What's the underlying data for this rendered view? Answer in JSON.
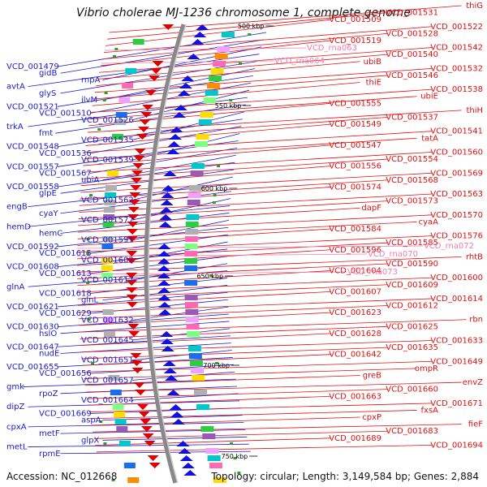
{
  "title": "Vibrio cholerae MJ-1236 chromosome 1, complete genome",
  "footer": {
    "accession": "Accession: NC_012668",
    "stats": "Topology: circular; Length: 3,149,584 bp; Genes: 2,884"
  },
  "colors": {
    "forward_label": "#1a1acc",
    "reverse_label": "#e01010",
    "rna_label": "#f07fb0",
    "forward_feature": "#1010e0",
    "reverse_feature": "#e00000",
    "backbone": "#888888"
  },
  "ticks": [
    "500 kbp",
    "550 kbp",
    "600 kbp",
    "650 kbp",
    "700 kbp",
    "750 kbp"
  ],
  "left_labels": [
    "VCD_001479",
    "gidB",
    "rnpA",
    "avtA",
    "glyS",
    "ilvM",
    "VCD_001521",
    "VCD_001510",
    "VCD_001526",
    "trkA",
    "fmt",
    "VCD_001535",
    "VCD_001548",
    "VCD_001536",
    "VCD_001539",
    "VCD_001557",
    "VCD_001567",
    "ubiA",
    "VCD_001558",
    "glpE",
    "VCD_001562",
    "engB",
    "cyaY",
    "VCD_001577",
    "hemD",
    "hemC",
    "VCD_001591",
    "VCD_001592",
    "VCD_001615",
    "VCD_001602",
    "VCD_001608",
    "VCD_001613",
    "VCD_001617",
    "glnA",
    "VCD_001618",
    "glnL",
    "VCD_001621",
    "VCD_001629",
    "VCD_001632",
    "VCD_001630",
    "hslO",
    "VCD_001645",
    "VCD_001647",
    "nudE",
    "VCD_001651",
    "VCD_001655",
    "VCD_001656",
    "VCD_001657",
    "gmk",
    "rpoZ",
    "VCD_001664",
    "dipZ",
    "VCD_001669",
    "aspA",
    "cpxA",
    "metF",
    "glpX",
    "metL",
    "rpmE"
  ],
  "right_labels": [
    "thiG",
    "VCD_001531",
    "VCD_001509",
    "VCD_001522",
    "VCD_001528",
    "VCD_001519",
    "VCD_001542",
    "VCD_001540",
    "ubiB",
    "VCD_001532",
    "VCD_001546",
    "thiE",
    "VCD_001538",
    "ubiE",
    "VCD_001555",
    "thiH",
    "VCD_001537",
    "VCD_001549",
    "VCD_001541",
    "tatA",
    "VCD_001547",
    "VCD_001560",
    "VCD_001554",
    "VCD_001556",
    "VCD_001569",
    "VCD_001568",
    "VCD_001574",
    "VCD_001563",
    "VCD_001573",
    "dapF",
    "VCD_001570",
    "cyaA",
    "VCD_001584",
    "VCD_001576",
    "VCD_001585",
    "VCD_001596",
    "rhtB",
    "VCD_001590",
    "VCD_001604",
    "VCD_001600",
    "VCD_001609",
    "VCD_001607",
    "VCD_001614",
    "VCD_001612",
    "VCD_001623",
    "rbn",
    "VCD_001625",
    "VCD_001628",
    "VCD_001633",
    "VCD_001635",
    "VCD_001642",
    "VCD_001649",
    "ompR",
    "greB",
    "envZ",
    "VCD_001660",
    "VCD_001663",
    "VCD_001671",
    "fxsA",
    "cpxP",
    "fieF",
    "VCD_001683",
    "VCD_001689",
    "VCD_001694"
  ],
  "rna_labels": [
    "VCD_rna063",
    "VCD_rna064",
    "VCD_rna070",
    "VCD_rna072",
    "VCD_rna073"
  ]
}
